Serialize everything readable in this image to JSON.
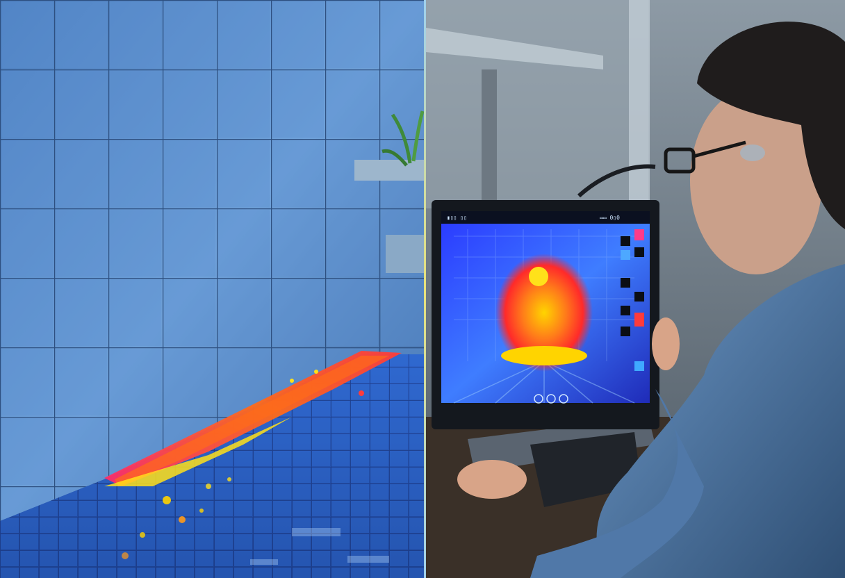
{
  "scene": {
    "layout": "side-by-side-split",
    "left_panel": {
      "subject": "tiled-pool-wall-with-thermal-leak-overlay",
      "overlay_palette": [
        "#ff2a6d",
        "#ff6b1a",
        "#ffe11a"
      ],
      "tile_color": "#5b8fd0"
    },
    "right_panel": {
      "subject": "technician-viewing-thermal-image-on-laptop",
      "screen_palette": [
        "#1e40ff",
        "#3fa9ff",
        "#ff3b2f",
        "#ffd400"
      ],
      "person": "man-with-glasses-in-blue-shirt"
    }
  },
  "screen_ui": {
    "header_left": "▮▯▯ ▯▯",
    "header_right": "▭▭ 0▯0"
  }
}
